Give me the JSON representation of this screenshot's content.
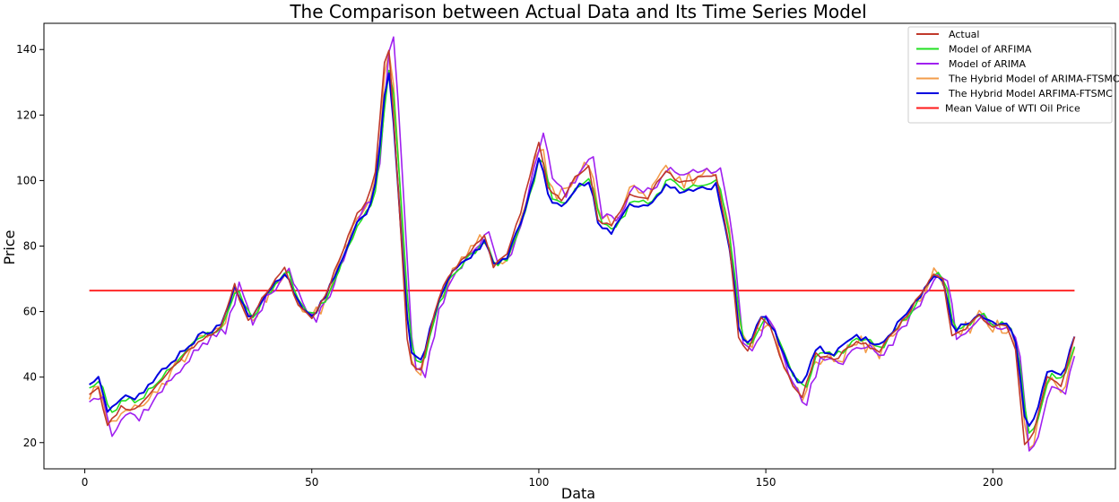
{
  "chart_data": {
    "type": "line",
    "title": "The Comparison between Actual Data and Its Time Series Model",
    "xlabel": "Data",
    "ylabel": "Price",
    "xlim": [
      -9,
      227
    ],
    "ylim": [
      12,
      148
    ],
    "xticks": [
      0,
      50,
      100,
      150,
      200
    ],
    "yticks": [
      20,
      40,
      60,
      80,
      100,
      120,
      140
    ],
    "legend_position": "top-right",
    "grid": false,
    "mean_value": 66.4,
    "actual_anchors": [
      [
        1,
        35
      ],
      [
        3,
        37
      ],
      [
        5,
        25
      ],
      [
        8,
        31
      ],
      [
        11,
        30
      ],
      [
        15,
        36
      ],
      [
        20,
        44
      ],
      [
        25,
        51
      ],
      [
        30,
        55
      ],
      [
        33,
        68
      ],
      [
        36,
        57
      ],
      [
        40,
        66
      ],
      [
        44,
        73
      ],
      [
        47,
        62
      ],
      [
        50,
        58
      ],
      [
        53,
        65
      ],
      [
        56,
        76
      ],
      [
        60,
        90
      ],
      [
        62,
        93
      ],
      [
        64,
        103
      ],
      [
        66,
        136
      ],
      [
        67,
        140
      ],
      [
        68,
        120
      ],
      [
        70,
        75
      ],
      [
        71,
        52
      ],
      [
        72,
        44
      ],
      [
        74,
        42
      ],
      [
        77,
        60
      ],
      [
        80,
        71
      ],
      [
        84,
        77
      ],
      [
        88,
        83
      ],
      [
        90,
        74
      ],
      [
        93,
        78
      ],
      [
        96,
        90
      ],
      [
        100,
        112
      ],
      [
        102,
        98
      ],
      [
        105,
        94
      ],
      [
        108,
        101
      ],
      [
        111,
        104
      ],
      [
        113,
        88
      ],
      [
        116,
        86
      ],
      [
        120,
        96
      ],
      [
        124,
        95
      ],
      [
        128,
        103
      ],
      [
        131,
        99
      ],
      [
        135,
        101
      ],
      [
        139,
        102
      ],
      [
        142,
        80
      ],
      [
        144,
        52
      ],
      [
        146,
        48
      ],
      [
        149,
        58
      ],
      [
        151,
        55
      ],
      [
        153,
        47
      ],
      [
        156,
        37
      ],
      [
        158,
        34
      ],
      [
        161,
        47
      ],
      [
        165,
        45
      ],
      [
        170,
        51
      ],
      [
        175,
        48
      ],
      [
        180,
        57
      ],
      [
        184,
        65
      ],
      [
        187,
        72
      ],
      [
        189,
        70
      ],
      [
        191,
        53
      ],
      [
        194,
        55
      ],
      [
        197,
        59
      ],
      [
        200,
        55
      ],
      [
        203,
        56
      ],
      [
        205,
        48
      ],
      [
        207,
        20
      ],
      [
        209,
        23
      ],
      [
        212,
        40
      ],
      [
        215,
        37
      ],
      [
        218,
        52
      ]
    ],
    "series": [
      {
        "name": "Actual",
        "color": "#c0392b",
        "lag": 0,
        "scale": 1.0,
        "width": 1.6,
        "noise": 0.6,
        "seed": 11
      },
      {
        "name": "Model of ARFIMA",
        "color": "#22e022",
        "lag": 0.6,
        "scale": 0.93,
        "width": 1.6,
        "noise": 1.0,
        "seed": 23
      },
      {
        "name": "Model of ARIMA",
        "color": "#a020f0",
        "lag": 1.0,
        "scale": 1.06,
        "width": 1.6,
        "noise": 1.4,
        "seed": 37
      },
      {
        "name": "The Hybrid Model of ARIMA-FTSMC",
        "color": "#f39c4a",
        "lag": 0.4,
        "scale": 1.02,
        "width": 1.6,
        "noise": 2.4,
        "seed": 51
      },
      {
        "name": "The Hybrid Model ARFIMA-FTSMC",
        "color": "#0000e0",
        "lag": 0.2,
        "scale": 0.9,
        "width": 2.0,
        "noise": 0.9,
        "seed": 67
      },
      {
        "name": "Mean Value of WTI Oil Price",
        "color": "#ff1a1a",
        "constant": 66.4,
        "x_range": [
          1,
          218
        ],
        "width": 1.8
      }
    ]
  }
}
